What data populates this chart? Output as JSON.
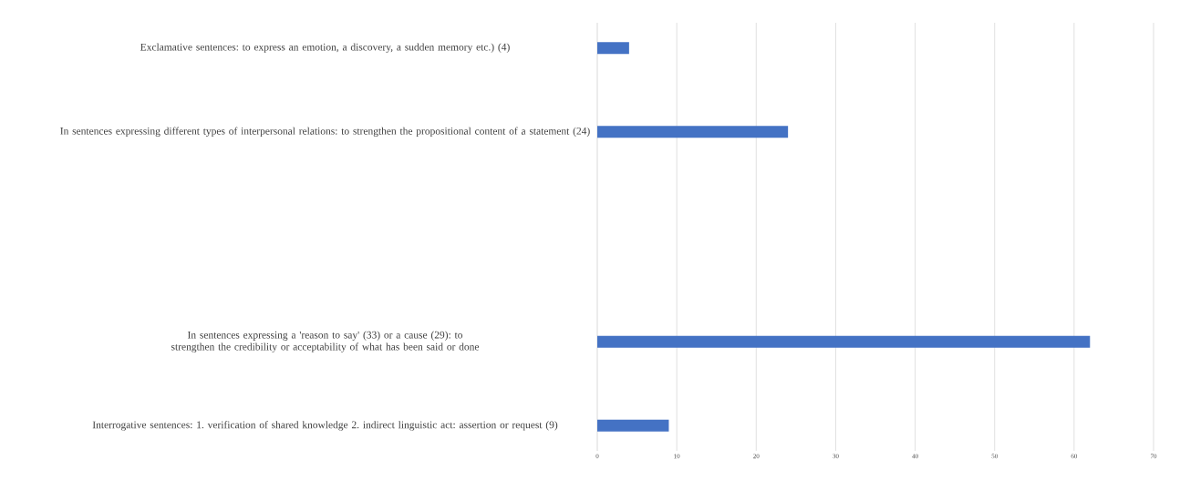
{
  "chart_data": {
    "type": "bar",
    "orientation": "horizontal",
    "categories": [
      "Exclamative sentences: to express an emotion, a discovery, a sudden memory etc.) (4)",
      null,
      "In sentences expressing different types of interpersonal relations: to strengthen the propositional content of a statement (24)",
      null,
      null,
      null,
      null,
      "In sentences expressing a 'reason to say' (33) or a cause (29): to strengthen the credibility or acceptability of what has been said or done",
      null,
      "Interrogative sentences: 1. verification of shared knowledge 2. indirect linguistic act: assertion or request (9)"
    ],
    "values": [
      4,
      null,
      24,
      null,
      null,
      null,
      null,
      62,
      null,
      9
    ],
    "color": "#4472c4",
    "xlim": [
      0,
      70
    ],
    "xticks": [
      0,
      10,
      20,
      30,
      40,
      50,
      60,
      70
    ],
    "grid": "x"
  }
}
